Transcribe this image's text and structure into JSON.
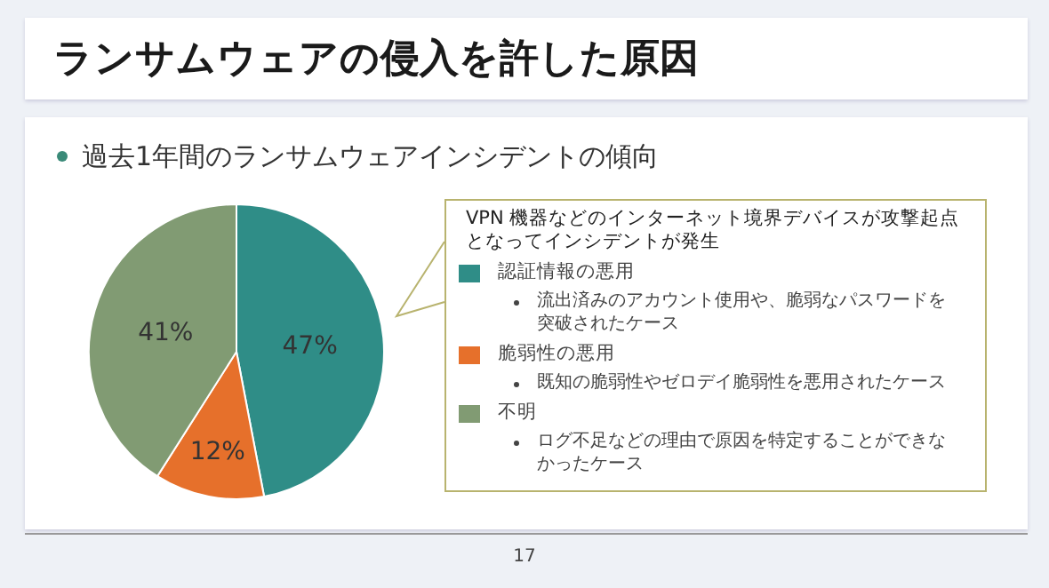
{
  "chart_data": {
    "type": "pie",
    "title": "ランサムウェアの侵入を許した原因",
    "subtitle": "過去1年間のランサムウェアインシデントの傾向",
    "categories": [
      "認証情報の悪用",
      "脆弱性の悪用",
      "不明"
    ],
    "values": [
      47,
      12,
      41
    ],
    "colors": [
      "#2f8d87",
      "#e6702b",
      "#819b73"
    ],
    "value_labels": [
      "47%",
      "12%",
      "41%"
    ],
    "legend": "right",
    "annotations": [
      "VPN 機器などのインターネット境界デバイスが攻撃起点となってインシデントが発生",
      "流出済みのアカウント使用や、脆弱なパスワードを突破されたケース",
      "既知の脆弱性やゼロデイ脆弱性を悪用されたケース",
      "ログ不足などの理由で原因を特定することができなかったケース",
      "17"
    ]
  }
}
